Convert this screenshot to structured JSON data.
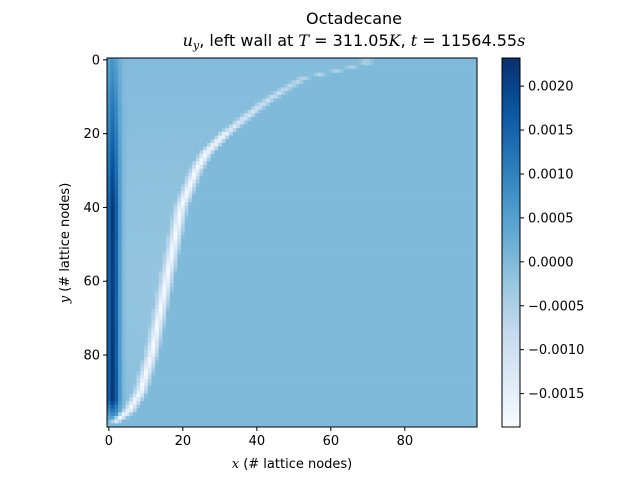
{
  "chart_data": {
    "type": "heatmap",
    "title": "Octadecane",
    "subtitle_parts": {
      "var": "u",
      "var_sub": "y",
      "mid": ", left wall at ",
      "T_sym": "T",
      "T_val": " = 311.05",
      "T_unit": "K",
      "sep": ", ",
      "t_sym": "t",
      "t_val": " = 11564.55",
      "t_unit": "s"
    },
    "xlabel": {
      "var": "x",
      "rest": " (# lattice nodes)"
    },
    "ylabel": {
      "var": "y",
      "rest": " (# lattice nodes)"
    },
    "grid_size": [
      100,
      100
    ],
    "xlim": [
      0,
      99
    ],
    "ylim": [
      99,
      0
    ],
    "x_ticks": [
      "0",
      "20",
      "40",
      "60",
      "80"
    ],
    "x_tick_values": [
      0,
      20,
      40,
      60,
      80
    ],
    "y_ticks": [
      "0",
      "20",
      "40",
      "60",
      "80"
    ],
    "y_tick_values": [
      0,
      20,
      40,
      60,
      80
    ],
    "colormap": "Blues",
    "colorbar": {
      "vmin": -0.00188,
      "vmax": 0.00232,
      "ticks": [
        "−0.0015",
        "−0.0010",
        "−0.0005",
        "0.0000",
        "0.0005",
        "0.0010",
        "0.0015",
        "0.0020"
      ],
      "tick_values": [
        -0.0015,
        -0.001,
        -0.0005,
        0.0,
        0.0005,
        0.001,
        0.0015,
        0.002
      ]
    },
    "field": {
      "background_value": 0.0,
      "wall_max_value": 0.00232,
      "interface_min_value": -0.00188,
      "interface_profile": [
        {
          "y": 1,
          "x": 71
        },
        {
          "y": 3,
          "x": 63
        },
        {
          "y": 5,
          "x": 54
        },
        {
          "y": 8,
          "x": 49
        },
        {
          "y": 12,
          "x": 43
        },
        {
          "y": 16,
          "x": 38
        },
        {
          "y": 20,
          "x": 33
        },
        {
          "y": 25,
          "x": 28
        },
        {
          "y": 30,
          "x": 25
        },
        {
          "y": 35,
          "x": 23
        },
        {
          "y": 40,
          "x": 21
        },
        {
          "y": 45,
          "x": 20
        },
        {
          "y": 50,
          "x": 19
        },
        {
          "y": 60,
          "x": 17
        },
        {
          "y": 70,
          "x": 15
        },
        {
          "y": 80,
          "x": 13
        },
        {
          "y": 90,
          "x": 10
        },
        {
          "y": 95,
          "x": 7
        },
        {
          "y": 99,
          "x": 2
        }
      ]
    }
  }
}
